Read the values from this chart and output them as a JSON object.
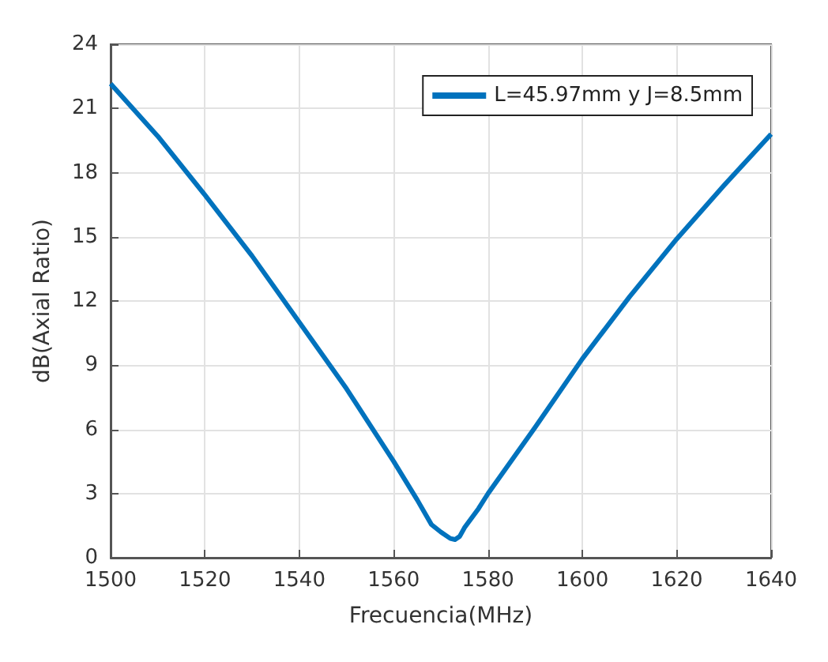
{
  "chart_data": {
    "type": "line",
    "xlabel": "Frecuencia(MHz)",
    "ylabel": "dB(Axial Ratio)",
    "x": [
      1500,
      1510,
      1520,
      1530,
      1540,
      1550,
      1560,
      1565,
      1568,
      1570,
      1572,
      1573,
      1574,
      1575,
      1578,
      1580,
      1590,
      1600,
      1610,
      1620,
      1630,
      1640
    ],
    "series": [
      {
        "name": "L=45.97mm y J=8.5mm",
        "color": "#0072bd",
        "values": [
          22.15,
          19.7,
          16.95,
          14.1,
          11.0,
          7.9,
          4.5,
          2.7,
          1.55,
          1.2,
          0.9,
          0.85,
          1.0,
          1.4,
          2.3,
          3.0,
          6.1,
          9.3,
          12.2,
          14.9,
          17.4,
          19.8
        ]
      }
    ],
    "xlim": [
      1500,
      1640
    ],
    "xticks": [
      1500,
      1520,
      1540,
      1560,
      1580,
      1600,
      1620,
      1640
    ],
    "ylim": [
      0,
      24
    ],
    "yticks": [
      0,
      3,
      6,
      9,
      12,
      15,
      18,
      21,
      24
    ],
    "grid": true,
    "legend": "top right",
    "marker": "none",
    "line_style": "solid"
  }
}
